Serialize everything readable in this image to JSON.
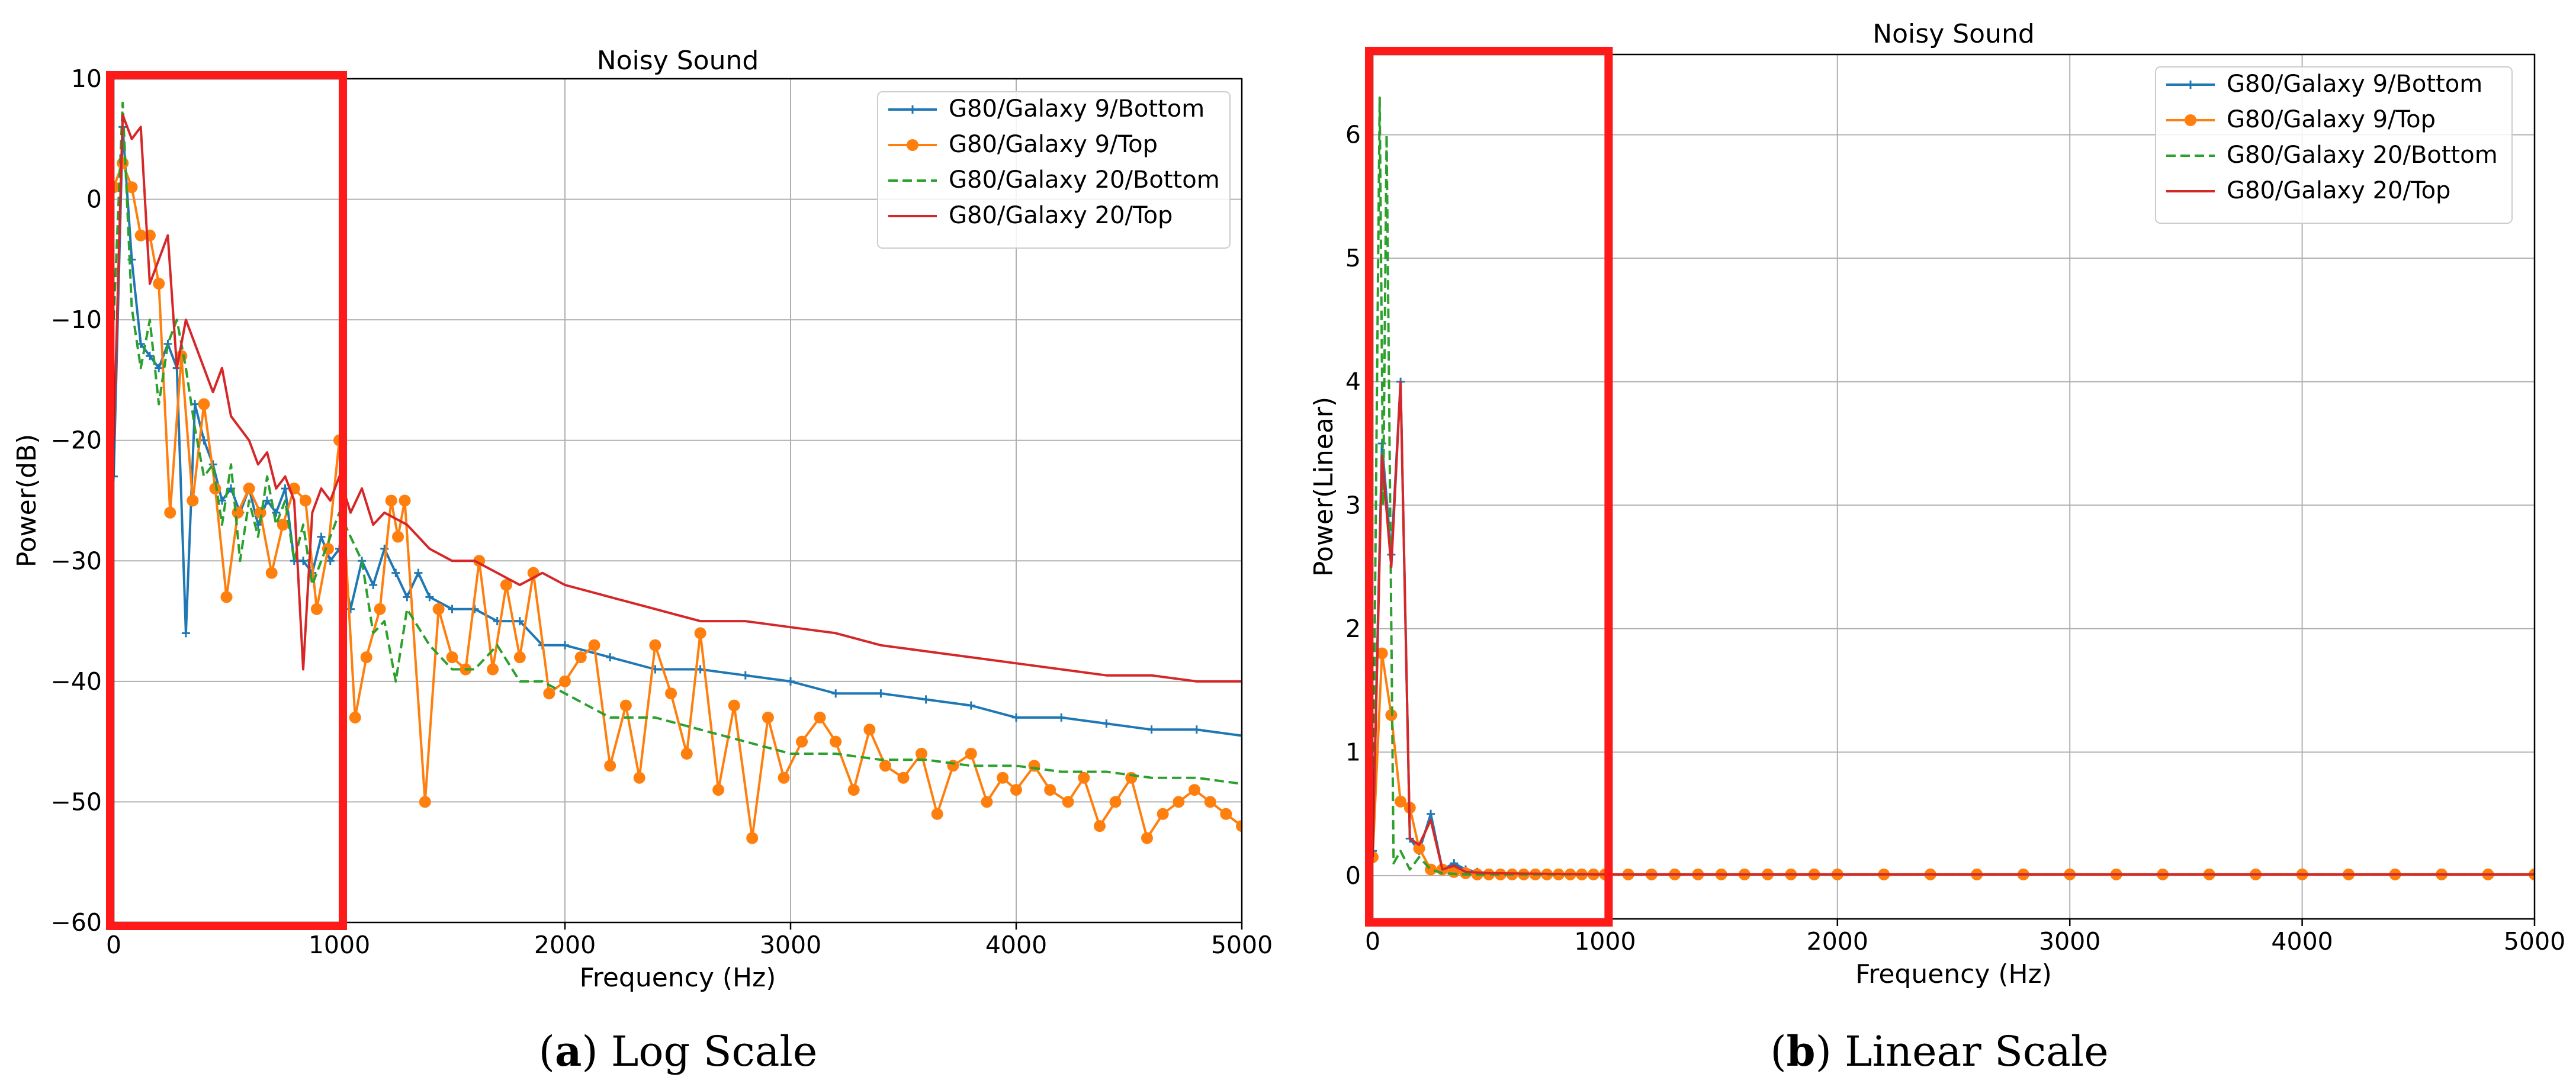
{
  "chart_data": [
    {
      "panel": "a",
      "type": "line",
      "title": "Noisy Sound",
      "xlabel": "Frequency (Hz)",
      "ylabel": "Power(dB)",
      "xlim": [
        0,
        5000
      ],
      "ylim": [
        -60,
        10
      ],
      "xticks": [
        0,
        1000,
        2000,
        3000,
        4000,
        5000
      ],
      "yticks": [
        -60,
        -50,
        -40,
        -30,
        -20,
        -10,
        0,
        10
      ],
      "xtick_labels": [
        "0",
        "1000",
        "2000",
        "3000",
        "4000",
        "5000"
      ],
      "ytick_labels": [
        "−60",
        "−50",
        "−40",
        "−30",
        "−20",
        "−10",
        "0",
        "10"
      ],
      "grid": true,
      "legend_position": "top-right",
      "highlight_box_x": [
        0,
        1000
      ],
      "series": [
        {
          "name": "G80/Galaxy 9/Bottom",
          "color": "#1f77b4",
          "style": "solid",
          "marker": "plus",
          "x": [
            0,
            40,
            80,
            120,
            160,
            200,
            240,
            280,
            320,
            360,
            400,
            440,
            480,
            520,
            560,
            600,
            640,
            680,
            720,
            760,
            800,
            840,
            880,
            920,
            960,
            1000,
            1050,
            1100,
            1150,
            1200,
            1250,
            1300,
            1350,
            1400,
            1500,
            1600,
            1700,
            1800,
            1900,
            2000,
            2200,
            2400,
            2600,
            2800,
            3000,
            3200,
            3400,
            3600,
            3800,
            4000,
            4200,
            4400,
            4600,
            4800,
            5000
          ],
          "y": [
            -23,
            6,
            -5,
            -12,
            -13,
            -14,
            -12,
            -14,
            -36,
            -17,
            -20,
            -22,
            -25,
            -24,
            -26,
            -24,
            -27,
            -25,
            -26,
            -24,
            -30,
            -30,
            -31,
            -28,
            -30,
            -29,
            -34,
            -30,
            -32,
            -29,
            -31,
            -33,
            -31,
            -33,
            -34,
            -34,
            -35,
            -35,
            -37,
            -37,
            -38,
            -39,
            -39,
            -39.5,
            -40,
            -41,
            -41,
            -41.5,
            -42,
            -43,
            -43,
            -43.5,
            -44,
            -44,
            -44.5
          ]
        },
        {
          "name": "G80/Galaxy 9/Top",
          "color": "#ff7f0e",
          "style": "solid",
          "marker": "circle",
          "x": [
            0,
            40,
            80,
            120,
            160,
            200,
            250,
            300,
            350,
            400,
            450,
            500,
            550,
            600,
            650,
            700,
            750,
            800,
            850,
            900,
            950,
            1000,
            1070,
            1120,
            1180,
            1230,
            1260,
            1290,
            1380,
            1440,
            1500,
            1560,
            1620,
            1680,
            1740,
            1800,
            1860,
            1930,
            2000,
            2070,
            2130,
            2200,
            2270,
            2330,
            2400,
            2470,
            2540,
            2600,
            2680,
            2750,
            2830,
            2900,
            2970,
            3050,
            3130,
            3200,
            3280,
            3350,
            3420,
            3500,
            3580,
            3650,
            3720,
            3800,
            3870,
            3940,
            4000,
            4080,
            4150,
            4230,
            4300,
            4370,
            4440,
            4510,
            4580,
            4650,
            4720,
            4790,
            4860,
            4930,
            5000
          ],
          "y": [
            1,
            3,
            1,
            -3,
            -3,
            -7,
            -26,
            -13,
            -25,
            -17,
            -24,
            -33,
            -26,
            -24,
            -26,
            -31,
            -27,
            -24,
            -25,
            -34,
            -29,
            -20,
            -43,
            -38,
            -34,
            -25,
            -28,
            -25,
            -50,
            -34,
            -38,
            -39,
            -30,
            -39,
            -32,
            -38,
            -31,
            -41,
            -40,
            -38,
            -37,
            -47,
            -42,
            -48,
            -37,
            -41,
            -46,
            -36,
            -49,
            -42,
            -53,
            -43,
            -48,
            -45,
            -43,
            -45,
            -49,
            -44,
            -47,
            -48,
            -46,
            -51,
            -47,
            -46,
            -50,
            -48,
            -49,
            -47,
            -49,
            -50,
            -48,
            -52,
            -50,
            -48,
            -53,
            -51,
            -50,
            -49,
            -50,
            -51,
            -52
          ]
        },
        {
          "name": "G80/Galaxy 20/Bottom",
          "color": "#2ca02c",
          "style": "dashed",
          "marker": "none",
          "x": [
            0,
            40,
            80,
            120,
            160,
            200,
            240,
            280,
            320,
            360,
            400,
            440,
            480,
            520,
            560,
            600,
            640,
            680,
            720,
            760,
            800,
            840,
            880,
            920,
            960,
            1000,
            1050,
            1100,
            1150,
            1200,
            1250,
            1300,
            1400,
            1500,
            1600,
            1700,
            1800,
            1900,
            2000,
            2200,
            2400,
            2600,
            2800,
            3000,
            3200,
            3400,
            3600,
            3800,
            4000,
            4200,
            4400,
            4600,
            4800,
            5000
          ],
          "y": [
            -10,
            8,
            -9,
            -14,
            -10,
            -17,
            -12,
            -10,
            -14,
            -19,
            -23,
            -22,
            -27,
            -22,
            -30,
            -25,
            -28,
            -23,
            -27,
            -25,
            -30,
            -27,
            -32,
            -30,
            -28,
            -26,
            -28,
            -30,
            -36,
            -35,
            -40,
            -34,
            -37,
            -39,
            -39,
            -37,
            -40,
            -40,
            -41,
            -43,
            -43,
            -44,
            -45,
            -46,
            -46,
            -46.5,
            -46.5,
            -47,
            -47,
            -47.5,
            -47.5,
            -48,
            -48,
            -48.5
          ]
        },
        {
          "name": "G80/Galaxy 20/Top",
          "color": "#d62728",
          "style": "solid",
          "marker": "none",
          "x": [
            0,
            40,
            80,
            120,
            160,
            200,
            240,
            280,
            320,
            360,
            400,
            440,
            480,
            520,
            560,
            600,
            640,
            680,
            720,
            760,
            800,
            840,
            880,
            920,
            960,
            1000,
            1050,
            1100,
            1150,
            1200,
            1300,
            1400,
            1500,
            1600,
            1700,
            1800,
            1900,
            2000,
            2200,
            2400,
            2600,
            2800,
            3000,
            3200,
            3400,
            3600,
            3800,
            4000,
            4200,
            4400,
            4600,
            4800,
            5000
          ],
          "y": [
            -20,
            7,
            5,
            6,
            -7,
            -5,
            -3,
            -14,
            -10,
            -12,
            -14,
            -16,
            -14,
            -18,
            -19,
            -20,
            -22,
            -21,
            -24,
            -23,
            -25,
            -39,
            -26,
            -24,
            -25,
            -23,
            -26,
            -24,
            -27,
            -26,
            -27,
            -29,
            -30,
            -30,
            -31,
            -32,
            -31,
            -32,
            -33,
            -34,
            -35,
            -35,
            -35.5,
            -36,
            -37,
            -37.5,
            -38,
            -38.5,
            -39,
            -39.5,
            -39.5,
            -40,
            -40
          ]
        }
      ]
    },
    {
      "panel": "b",
      "type": "line",
      "title": "Noisy Sound",
      "xlabel": "Frequency (Hz)",
      "ylabel": "Power(Linear)",
      "xlim": [
        0,
        5000
      ],
      "ylim": [
        -0.35,
        6.65
      ],
      "xticks": [
        0,
        1000,
        2000,
        3000,
        4000,
        5000
      ],
      "yticks": [
        0,
        1,
        2,
        3,
        4,
        5,
        6
      ],
      "xtick_labels": [
        "0",
        "1000",
        "2000",
        "3000",
        "4000",
        "5000"
      ],
      "ytick_labels": [
        "0",
        "1",
        "2",
        "3",
        "4",
        "5",
        "6"
      ],
      "grid": true,
      "legend_position": "top-right",
      "highlight_box_x": [
        0,
        1000
      ],
      "series": [
        {
          "name": "G80/Galaxy 9/Bottom",
          "color": "#1f77b4",
          "style": "solid",
          "marker": "plus",
          "x": [
            0,
            40,
            80,
            120,
            160,
            200,
            250,
            300,
            350,
            400,
            450,
            500,
            600,
            800,
            1000,
            2000,
            3000,
            4000,
            5000
          ],
          "y": [
            0.2,
            3.5,
            2.6,
            4.0,
            0.3,
            0.2,
            0.5,
            0.05,
            0.1,
            0.05,
            0.03,
            0.02,
            0.01,
            0.01,
            0.01,
            0.01,
            0.01,
            0.01,
            0.01
          ]
        },
        {
          "name": "G80/Galaxy 9/Top",
          "color": "#ff7f0e",
          "style": "solid",
          "marker": "circle",
          "x": [
            0,
            40,
            80,
            120,
            160,
            200,
            250,
            300,
            350,
            400,
            450,
            500,
            550,
            600,
            650,
            700,
            750,
            800,
            850,
            900,
            950,
            1000,
            1100,
            1200,
            1300,
            1400,
            1500,
            1600,
            1700,
            1800,
            1900,
            2000,
            2200,
            2400,
            2600,
            2800,
            3000,
            3200,
            3400,
            3600,
            3800,
            4000,
            4200,
            4400,
            4600,
            4800,
            5000
          ],
          "y": [
            0.15,
            1.8,
            1.3,
            0.6,
            0.55,
            0.22,
            0.05,
            0.05,
            0.03,
            0.02,
            0.01,
            0.01,
            0.01,
            0.01,
            0.01,
            0.01,
            0.01,
            0.01,
            0.01,
            0.01,
            0.01,
            0.01,
            0.01,
            0.01,
            0.01,
            0.01,
            0.01,
            0.01,
            0.01,
            0.01,
            0.01,
            0.01,
            0.01,
            0.01,
            0.01,
            0.01,
            0.01,
            0.01,
            0.01,
            0.01,
            0.01,
            0.01,
            0.01,
            0.01,
            0.01,
            0.01,
            0.01
          ]
        },
        {
          "name": "G80/Galaxy 20/Bottom",
          "color": "#2ca02c",
          "style": "dashed",
          "marker": "none",
          "x": [
            0,
            30,
            45,
            60,
            90,
            120,
            160,
            200,
            250,
            300,
            400,
            500,
            1000,
            2000,
            3000,
            4000,
            5000
          ],
          "y": [
            0.2,
            6.3,
            3.0,
            6.0,
            0.1,
            0.2,
            0.05,
            0.15,
            0.05,
            0.02,
            0.01,
            0.01,
            0.01,
            0.01,
            0.01,
            0.01,
            0.01
          ]
        },
        {
          "name": "G80/Galaxy 20/Top",
          "color": "#d62728",
          "style": "solid",
          "marker": "none",
          "x": [
            0,
            40,
            80,
            120,
            160,
            200,
            250,
            300,
            350,
            400,
            500,
            1000,
            2000,
            3000,
            4000,
            5000
          ],
          "y": [
            0.15,
            3.4,
            2.5,
            4.0,
            0.3,
            0.25,
            0.45,
            0.05,
            0.08,
            0.03,
            0.02,
            0.01,
            0.01,
            0.01,
            0.01,
            0.01
          ]
        }
      ]
    }
  ],
  "captions": {
    "a": {
      "letter": "a",
      "text": " Log Scale"
    },
    "b": {
      "letter": "b",
      "text": " Linear Scale"
    }
  },
  "colors": {
    "highlight_box": "#ff1a1a"
  }
}
